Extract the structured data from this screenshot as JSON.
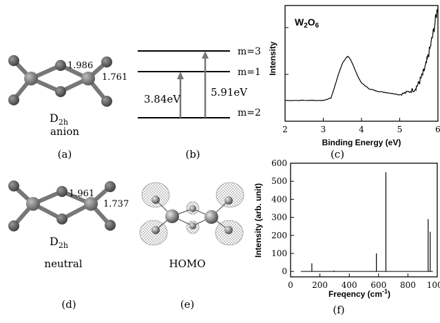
{
  "panels": {
    "a": {
      "caption": "(a)",
      "symmetry_main": "D",
      "symmetry_sub": "2h",
      "state": "anion",
      "bond_long": "1.986",
      "bond_short": "1.761"
    },
    "b": {
      "caption": "(b)",
      "levels": [
        "m=3",
        "m=1",
        "m=2"
      ],
      "transition_1": "3.84eV",
      "transition_2": "5.91eV"
    },
    "d": {
      "caption": "(d)",
      "symmetry_main": "D",
      "symmetry_sub": "2h",
      "state": "neutral",
      "bond_long": "1.961",
      "bond_short": "1.737"
    },
    "e": {
      "caption": "(e)",
      "label": "HOMO"
    },
    "c": {
      "caption": "(c)"
    },
    "f": {
      "caption": "(f)"
    }
  },
  "chart_data": [
    {
      "type": "line",
      "title": "W₂O₆",
      "xlabel": "Binding Energy (eV)",
      "ylabel": "Intensity",
      "xlim": [
        2,
        6
      ],
      "ylim": [
        0,
        1
      ],
      "x_ticks": [
        "2",
        "3",
        "4",
        "5",
        "6"
      ],
      "grid": false,
      "x": [
        2.0,
        2.5,
        3.0,
        3.2,
        3.3,
        3.4,
        3.5,
        3.6,
        3.65,
        3.7,
        3.8,
        3.9,
        4.0,
        4.2,
        4.4,
        4.6,
        4.8,
        5.0,
        5.2,
        5.4,
        5.5,
        5.6,
        5.7,
        5.8,
        5.9,
        6.0
      ],
      "y": [
        0.18,
        0.18,
        0.18,
        0.2,
        0.3,
        0.41,
        0.5,
        0.55,
        0.56,
        0.54,
        0.47,
        0.39,
        0.33,
        0.28,
        0.26,
        0.25,
        0.24,
        0.23,
        0.25,
        0.28,
        0.33,
        0.4,
        0.5,
        0.64,
        0.8,
        1.0
      ]
    },
    {
      "type": "bar",
      "xlabel": "Freqency (cm⁻¹)",
      "ylabel": "Intensity (arb. unit)",
      "xlim": [
        0,
        1000
      ],
      "ylim": [
        -30,
        600
      ],
      "x_ticks": [
        "0",
        "200",
        "400",
        "600",
        "800",
        "1000"
      ],
      "y_ticks": [
        "0",
        "100",
        "200",
        "300",
        "400",
        "500",
        "600"
      ],
      "grid": false,
      "baseline_range": [
        70,
        970
      ],
      "x": [
        145,
        295,
        585,
        650,
        938,
        952
      ],
      "values": [
        45,
        5,
        100,
        550,
        290,
        220
      ]
    }
  ]
}
